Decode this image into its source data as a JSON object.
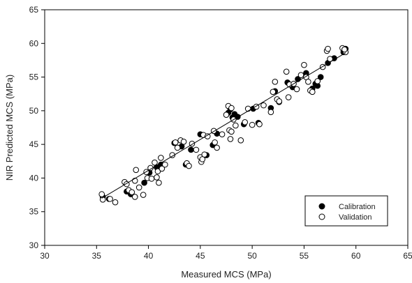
{
  "chart_data": {
    "type": "scatter",
    "title": "",
    "xlabel": "Measured MCS (MPa)",
    "ylabel": "NIR Predicted MCS (MPa)",
    "xlim": [
      30,
      65
    ],
    "ylim": [
      30,
      65
    ],
    "xticks": [
      30,
      35,
      40,
      45,
      50,
      55,
      60,
      65
    ],
    "yticks": [
      30,
      35,
      40,
      45,
      50,
      55,
      60,
      65
    ],
    "grid": false,
    "legend_position": "bottom-right",
    "series": [
      {
        "name": "Calibration",
        "marker": "filled-circle",
        "color": "#000000",
        "points": [
          [
            35.6,
            37.2
          ],
          [
            36.2,
            36.9
          ],
          [
            37.9,
            38.0
          ],
          [
            38.3,
            37.6
          ],
          [
            39.6,
            39.3
          ],
          [
            40.1,
            40.8
          ],
          [
            40.8,
            41.6
          ],
          [
            41.2,
            42.0
          ],
          [
            42.5,
            45.2
          ],
          [
            43.2,
            44.7
          ],
          [
            43.6,
            42.0
          ],
          [
            44.1,
            44.2
          ],
          [
            45.0,
            46.5
          ],
          [
            45.6,
            43.4
          ],
          [
            46.2,
            44.9
          ],
          [
            46.6,
            46.6
          ],
          [
            47.7,
            49.7
          ],
          [
            47.9,
            50.2
          ],
          [
            48.1,
            49.0
          ],
          [
            48.3,
            49.5
          ],
          [
            48.6,
            49.1
          ],
          [
            49.2,
            48.0
          ],
          [
            50.1,
            50.3
          ],
          [
            50.6,
            48.2
          ],
          [
            51.8,
            50.4
          ],
          [
            52.2,
            52.9
          ],
          [
            52.6,
            51.3
          ],
          [
            53.4,
            54.2
          ],
          [
            53.9,
            53.5
          ],
          [
            54.4,
            54.7
          ],
          [
            55.2,
            55.6
          ],
          [
            55.8,
            53.3
          ],
          [
            56.1,
            54.0
          ],
          [
            56.3,
            53.7
          ],
          [
            56.6,
            55.0
          ],
          [
            57.3,
            57.1
          ],
          [
            57.9,
            57.8
          ],
          [
            58.8,
            58.7
          ],
          [
            59.0,
            59.2
          ]
        ]
      },
      {
        "name": "Validation",
        "marker": "open-circle",
        "color": "#000000",
        "points": [
          [
            35.5,
            37.6
          ],
          [
            35.6,
            36.8
          ],
          [
            36.3,
            36.9
          ],
          [
            36.8,
            36.4
          ],
          [
            37.7,
            39.4
          ],
          [
            37.9,
            39.1
          ],
          [
            38.1,
            38.2
          ],
          [
            38.4,
            37.9
          ],
          [
            38.7,
            39.6
          ],
          [
            38.8,
            41.2
          ],
          [
            38.7,
            37.2
          ],
          [
            39.1,
            38.6
          ],
          [
            39.5,
            37.5
          ],
          [
            39.8,
            40.9
          ],
          [
            39.9,
            40.0
          ],
          [
            40.2,
            41.5
          ],
          [
            40.3,
            39.9
          ],
          [
            40.6,
            42.3
          ],
          [
            40.8,
            40.1
          ],
          [
            40.9,
            41.0
          ],
          [
            41.0,
            39.3
          ],
          [
            41.2,
            43.0
          ],
          [
            41.3,
            41.4
          ],
          [
            41.6,
            42.0
          ],
          [
            42.3,
            43.4
          ],
          [
            42.6,
            45.3
          ],
          [
            42.8,
            44.5
          ],
          [
            43.1,
            45.6
          ],
          [
            43.4,
            45.4
          ],
          [
            43.7,
            42.2
          ],
          [
            43.9,
            41.8
          ],
          [
            44.2,
            45.1
          ],
          [
            44.6,
            44.2
          ],
          [
            45.0,
            43.1
          ],
          [
            45.1,
            42.4
          ],
          [
            45.2,
            42.8
          ],
          [
            45.3,
            46.4
          ],
          [
            45.4,
            43.5
          ],
          [
            45.7,
            46.2
          ],
          [
            46.3,
            47.0
          ],
          [
            46.4,
            45.3
          ],
          [
            46.6,
            44.5
          ],
          [
            47.1,
            46.5
          ],
          [
            47.5,
            49.4
          ],
          [
            47.7,
            50.7
          ],
          [
            47.8,
            47.1
          ],
          [
            47.9,
            45.8
          ],
          [
            48.0,
            46.9
          ],
          [
            48.0,
            50.4
          ],
          [
            48.2,
            48.7
          ],
          [
            48.4,
            47.8
          ],
          [
            48.9,
            45.6
          ],
          [
            49.3,
            48.3
          ],
          [
            49.6,
            50.3
          ],
          [
            50.0,
            47.9
          ],
          [
            50.4,
            50.6
          ],
          [
            50.7,
            48.0
          ],
          [
            51.1,
            50.8
          ],
          [
            51.8,
            49.8
          ],
          [
            52.0,
            52.8
          ],
          [
            52.2,
            54.3
          ],
          [
            52.4,
            51.7
          ],
          [
            52.6,
            51.4
          ],
          [
            53.3,
            55.8
          ],
          [
            53.5,
            52.0
          ],
          [
            53.6,
            53.9
          ],
          [
            54.0,
            54.0
          ],
          [
            54.3,
            53.2
          ],
          [
            54.7,
            55.3
          ],
          [
            55.0,
            56.8
          ],
          [
            55.2,
            55.0
          ],
          [
            55.4,
            54.3
          ],
          [
            55.6,
            53.0
          ],
          [
            55.8,
            52.8
          ],
          [
            56.3,
            54.4
          ],
          [
            56.8,
            56.5
          ],
          [
            57.2,
            58.9
          ],
          [
            57.3,
            59.2
          ],
          [
            57.5,
            57.7
          ],
          [
            58.7,
            59.3
          ],
          [
            59.0,
            58.7
          ],
          [
            58.9,
            59.1
          ]
        ]
      }
    ],
    "fit_line": {
      "x": [
        35.5,
        59.0
      ],
      "y": [
        37.0,
        58.6
      ]
    }
  }
}
